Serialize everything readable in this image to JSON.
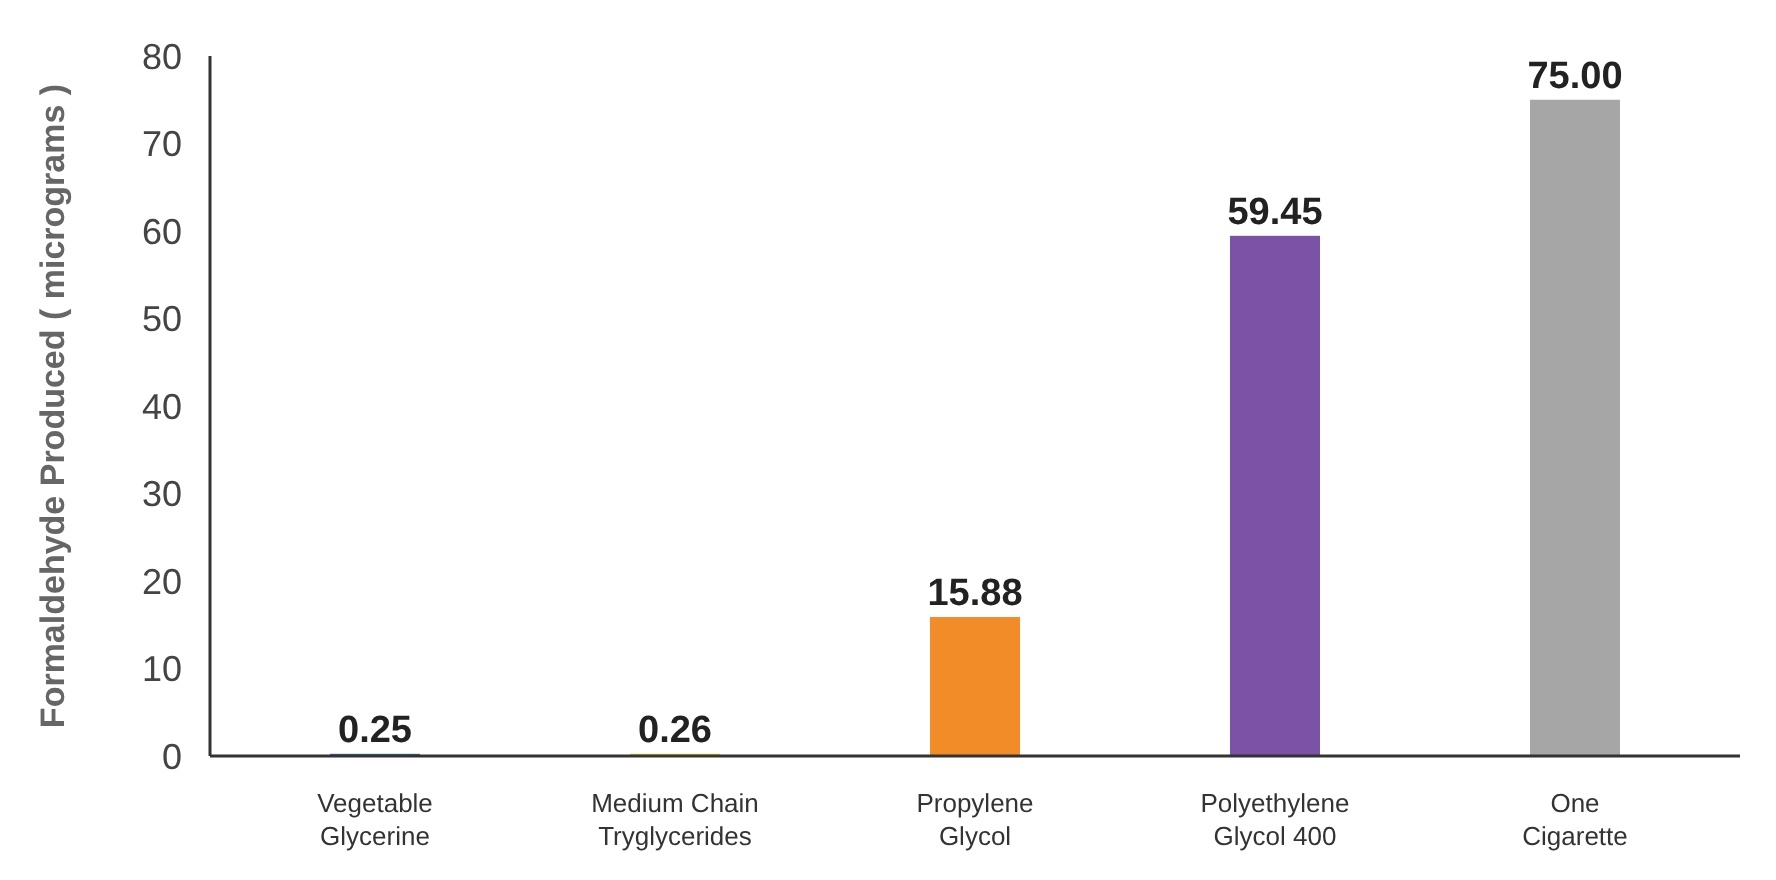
{
  "chart_data": {
    "type": "bar",
    "ylabel": "Formaldehyde Produced ( micrograms )",
    "categories": [
      "Vegetable Glycerine",
      "Medium Chain Tryglycerides",
      "Propylene Glycol",
      "Polyethylene Glycol 400",
      "One Cigarette"
    ],
    "values": [
      0.25,
      0.26,
      15.88,
      59.45,
      75.0
    ],
    "value_labels": [
      "0.25",
      "0.26",
      "15.88",
      "59.45",
      "75.00"
    ],
    "colors": [
      "#2e6da4",
      "#e8d630",
      "#f28c28",
      "#7b52a6",
      "#a6a6a6"
    ],
    "ylim": [
      0,
      80
    ],
    "yticks": [
      0,
      10,
      20,
      30,
      40,
      50,
      60,
      70,
      80
    ],
    "grid": false
  }
}
